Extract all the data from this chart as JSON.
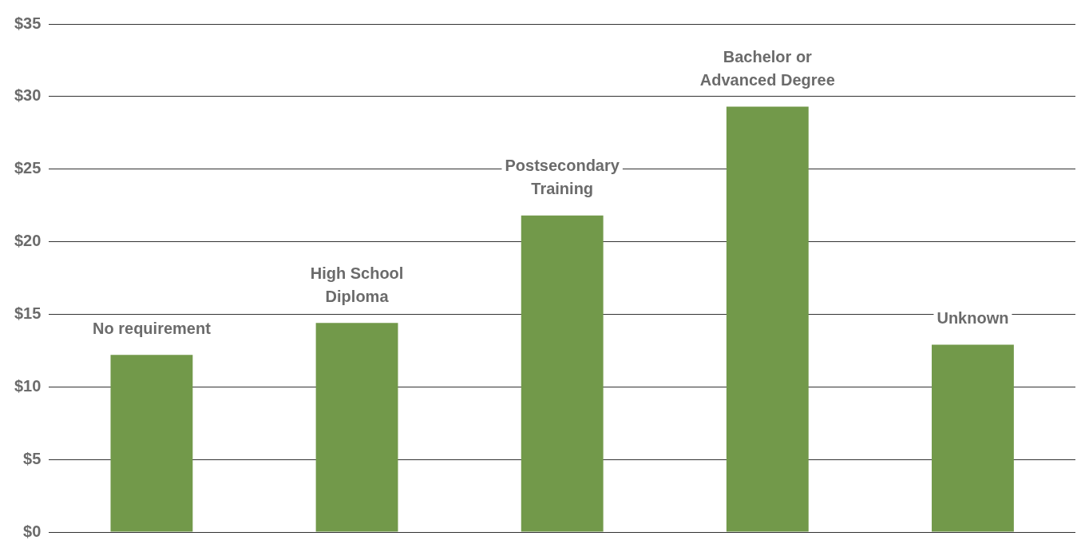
{
  "chart_data": {
    "type": "bar",
    "categories": [
      "No requirement",
      "High School Diploma",
      "Postsecondary Training",
      "Bachelor or Advanced Degree",
      "Unknown"
    ],
    "values": [
      12.2,
      14.4,
      21.8,
      29.3,
      12.9
    ],
    "color": "#72994a",
    "ylim": [
      0,
      35
    ],
    "yticks": [
      {
        "value": 0,
        "label": "$0"
      },
      {
        "value": 5,
        "label": "$5"
      },
      {
        "value": 10,
        "label": "$10"
      },
      {
        "value": 15,
        "label": "$15"
      },
      {
        "value": 20,
        "label": "$20"
      },
      {
        "value": 25,
        "label": "$25"
      },
      {
        "value": 30,
        "label": "$30"
      },
      {
        "value": 35,
        "label": "$35"
      }
    ],
    "grid": "y"
  }
}
